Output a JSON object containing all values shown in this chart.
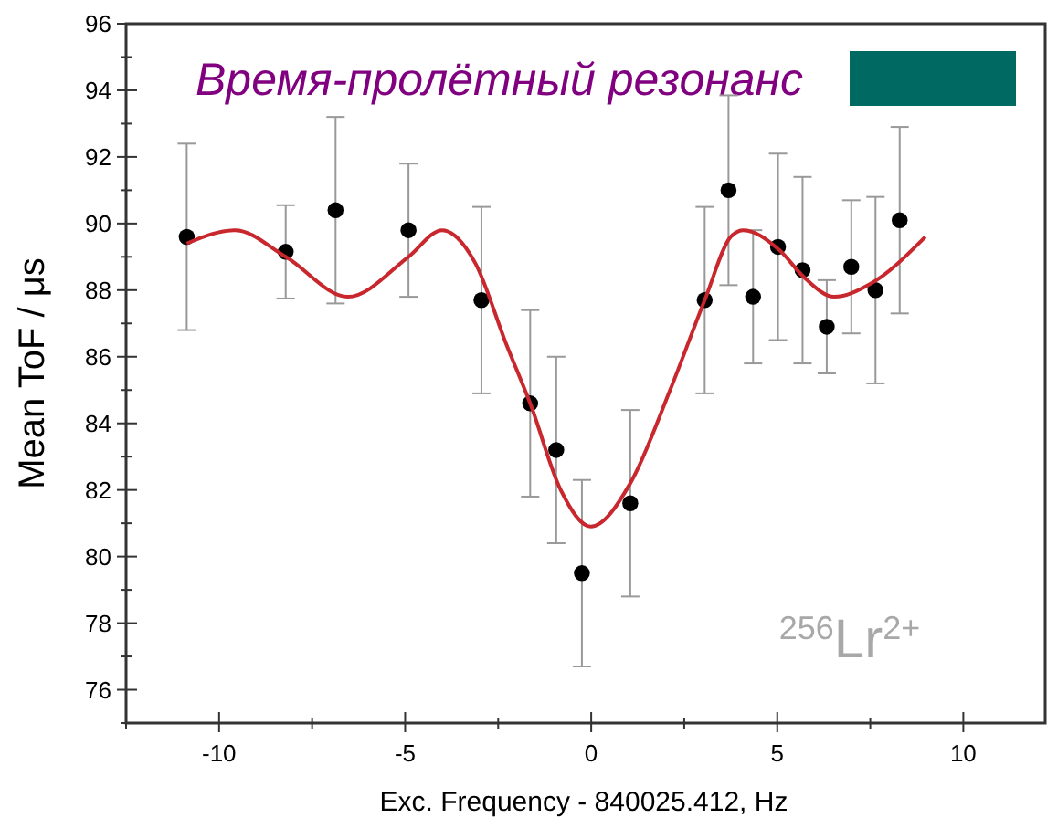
{
  "chart_data": {
    "type": "scatter",
    "title": "Время-пролётный резонанс",
    "xlabel": "Exc. Frequency - 840025.412, Hz",
    "ylabel": "Mean ToF / μs",
    "annotations": [
      "$^{256}$Lr$^{2+}$"
    ],
    "xlim": [
      -12.5,
      12.2
    ],
    "ylim": [
      75,
      96
    ],
    "xticks": [
      {
        "value": -12.5,
        "label": null
      },
      -10,
      {
        "value": -7.5,
        "label": null
      },
      -5,
      {
        "value": -2.5,
        "label": null
      },
      0,
      {
        "value": 2.5,
        "label": null
      },
      5,
      {
        "value": 7.5,
        "label": null
      },
      10
    ],
    "yticks": [
      {
        "value": 75,
        "label": null
      },
      76,
      {
        "value": 77,
        "label": null
      },
      78,
      {
        "value": 79,
        "label": null
      },
      80,
      {
        "value": 81,
        "label": null
      },
      82,
      {
        "value": 83,
        "label": null
      },
      84,
      {
        "value": 85,
        "label": null
      },
      86,
      {
        "value": 87,
        "label": null
      },
      88,
      {
        "value": 89,
        "label": null
      },
      90,
      {
        "value": 91,
        "label": null
      },
      92,
      {
        "value": 93,
        "label": null
      },
      94,
      {
        "value": 95,
        "label": null
      },
      96
    ],
    "grid": false,
    "marker": "circle",
    "series": [
      {
        "color": "#000000",
        "x": [
          -10.87,
          -8.21,
          -6.87,
          -4.91,
          -2.95,
          -1.64,
          -0.94,
          -0.25,
          1.05,
          3.05,
          3.69,
          4.35,
          5.02,
          5.68,
          6.33,
          6.99,
          7.64,
          8.29
        ],
        "values": [
          89.6,
          89.15,
          90.4,
          89.8,
          87.7,
          84.6,
          83.2,
          79.5,
          81.6,
          87.7,
          91.0,
          87.8,
          89.3,
          88.6,
          86.9,
          88.7,
          88.0,
          90.1
        ],
        "errors": [
          2.8,
          1.4,
          2.8,
          2.0,
          2.8,
          2.8,
          2.8,
          2.8,
          2.8,
          2.8,
          2.85,
          2.0,
          2.8,
          2.8,
          1.4,
          2.0,
          2.8,
          2.8
        ]
      },
      {
        "type": "line",
        "color": "#c8272d",
        "marker": "none",
        "x": [
          -10.87,
          -9.57,
          -8.21,
          -6.54,
          -4.91,
          -4.01,
          -3.11,
          -2.29,
          -1.64,
          -0.82,
          -0.01,
          1.05,
          2.12,
          3.05,
          3.75,
          4.08,
          5.06,
          5.71,
          6.53,
          7.52,
          8.98
        ],
        "values": [
          89.4,
          89.8,
          89.0,
          87.8,
          89.0,
          89.8,
          88.8,
          86.4,
          84.6,
          82.0,
          80.9,
          82.2,
          85.0,
          87.7,
          89.6,
          89.8,
          89.2,
          88.4,
          87.8,
          88.2,
          89.6
        ]
      }
    ]
  }
}
